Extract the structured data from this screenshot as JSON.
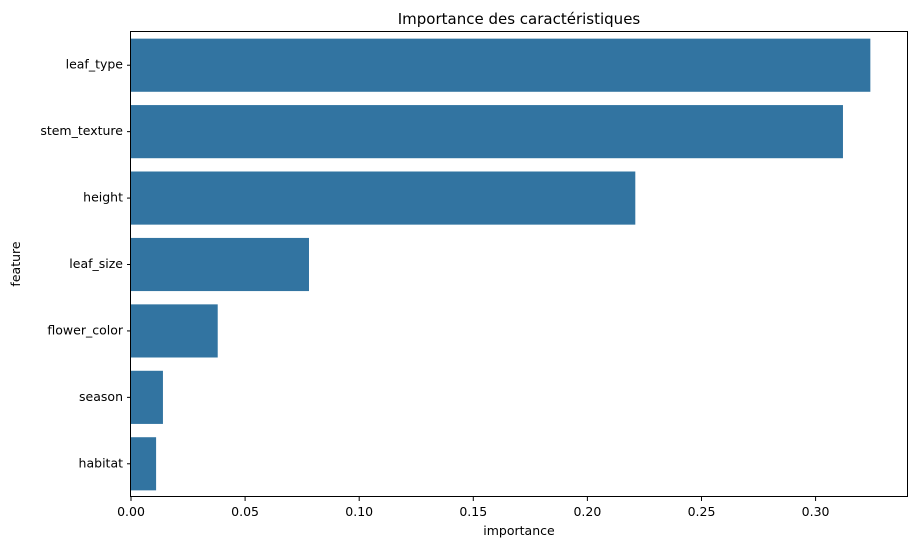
{
  "chart_data": {
    "type": "bar",
    "orientation": "horizontal",
    "title": "Importance des caractéristiques",
    "xlabel": "importance",
    "ylabel": "feature",
    "categories": [
      "leaf_type",
      "stem_texture",
      "height",
      "leaf_size",
      "flower_color",
      "season",
      "habitat"
    ],
    "values": [
      0.324,
      0.312,
      0.221,
      0.078,
      0.038,
      0.014,
      0.011
    ],
    "xlim": [
      0,
      0.3405
    ],
    "xticks": [
      0.0,
      0.05,
      0.1,
      0.15,
      0.2,
      0.25,
      0.3
    ],
    "xtick_labels": [
      "0.00",
      "0.05",
      "0.10",
      "0.15",
      "0.20",
      "0.25",
      "0.30"
    ],
    "bar_color": "#3274a1",
    "grid": false
  }
}
